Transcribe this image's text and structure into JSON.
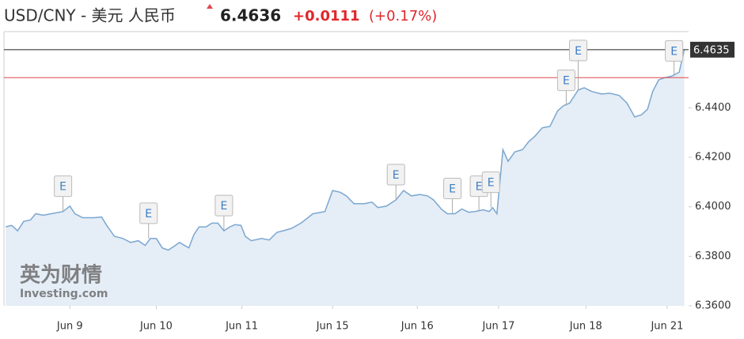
{
  "chart_data": {
    "type": "area",
    "title": "USD/CNY - 美元 人民币",
    "price": "6.4636",
    "change": "+0.0111",
    "change_percent": "(+0.17%)",
    "watermark": [
      "英为财情",
      "Investing.com"
    ],
    "x": [
      0.02,
      0.09,
      0.16,
      0.23,
      0.31,
      0.37,
      0.46,
      0.55,
      0.69,
      0.77,
      0.83,
      0.92,
      1.05,
      1.14,
      1.2,
      1.29,
      1.39,
      1.48,
      1.57,
      1.65,
      1.71,
      1.78,
      1.85,
      1.92,
      1.99,
      2.05,
      2.16,
      2.22,
      2.28,
      2.36,
      2.43,
      2.5,
      2.57,
      2.64,
      2.7,
      2.77,
      2.82,
      2.89,
      3.01,
      3.1,
      3.19,
      3.26,
      3.36,
      3.47,
      3.61,
      3.75,
      3.84,
      3.93,
      4.0,
      4.09,
      4.21,
      4.3,
      4.37,
      4.47,
      4.58,
      4.67,
      4.76,
      4.86,
      4.95,
      5.02,
      5.11,
      5.18,
      5.27,
      5.35,
      5.43,
      5.5,
      5.6,
      5.67,
      5.71,
      5.76,
      5.83,
      5.89,
      5.97,
      6.06,
      6.13,
      6.2,
      6.29,
      6.38,
      6.47,
      6.54,
      6.61,
      6.71,
      6.78,
      6.87,
      6.98,
      7.08,
      7.19,
      7.28,
      7.37,
      7.45,
      7.52,
      7.58,
      7.65,
      7.72,
      7.8,
      7.89,
      7.95
    ],
    "series": [
      {
        "name": "USD/CNY",
        "color": "#7ba7d1",
        "fill": "#e5edf6",
        "values": [
          6.3919,
          6.3925,
          6.3903,
          6.3941,
          6.3947,
          6.3972,
          6.3966,
          6.3972,
          6.3981,
          6.4003,
          6.3972,
          6.3956,
          6.3956,
          6.3959,
          6.3925,
          6.3881,
          6.3872,
          6.3856,
          6.3863,
          6.3844,
          6.3872,
          6.3872,
          6.3834,
          6.3825,
          6.3841,
          6.3856,
          6.3834,
          6.3888,
          6.3919,
          6.3919,
          6.3934,
          6.3934,
          6.3903,
          6.3919,
          6.3928,
          6.3925,
          6.3881,
          6.3863,
          6.3872,
          6.3866,
          6.3897,
          6.3903,
          6.3913,
          6.3934,
          6.3972,
          6.3981,
          6.4066,
          6.4059,
          6.4044,
          6.4013,
          6.4013,
          6.4019,
          6.3997,
          6.4003,
          6.4028,
          6.4066,
          6.4044,
          6.405,
          6.4044,
          6.4028,
          6.3991,
          6.3972,
          6.3972,
          6.3991,
          6.3978,
          6.3981,
          6.3988,
          6.3981,
          6.3997,
          6.3972,
          6.4231,
          6.4184,
          6.4222,
          6.4231,
          6.4263,
          6.4284,
          6.4319,
          6.4325,
          6.4388,
          6.4409,
          6.4419,
          6.4472,
          6.4481,
          6.4466,
          6.4456,
          6.4459,
          6.445,
          6.4419,
          6.4363,
          6.4372,
          6.4394,
          6.4466,
          6.4513,
          6.4522,
          6.4528,
          6.4544,
          6.4636
        ]
      }
    ],
    "reference_lines": [
      {
        "value": 6.4635,
        "color": "#222222"
      },
      {
        "value": 6.4522,
        "color": "#e0474c"
      }
    ],
    "events": [
      {
        "x": 0.69,
        "label": "E"
      },
      {
        "x": 1.69,
        "label": "E"
      },
      {
        "x": 2.57,
        "label": "E"
      },
      {
        "x": 4.58,
        "label": "E"
      },
      {
        "x": 5.24,
        "label": "E"
      },
      {
        "x": 5.55,
        "label": "E"
      },
      {
        "x": 5.69,
        "label": "E"
      },
      {
        "x": 6.57,
        "label": "E"
      },
      {
        "x": 6.71,
        "label": "E"
      },
      {
        "x": 7.83,
        "label": "E"
      }
    ],
    "xlim": [
      0,
      8
    ],
    "xticks": [
      {
        "value": 0.77,
        "label": "Jun 9"
      },
      {
        "value": 1.78,
        "label": "Jun 10"
      },
      {
        "value": 2.78,
        "label": "Jun 11"
      },
      {
        "value": 3.84,
        "label": "Jun 15"
      },
      {
        "value": 4.83,
        "label": "Jun 16"
      },
      {
        "value": 5.78,
        "label": "Jun 17"
      },
      {
        "value": 6.8,
        "label": "Jun 18"
      },
      {
        "value": 7.75,
        "label": "Jun 21"
      }
    ],
    "ylim": [
      6.36,
      6.4708
    ],
    "yticks": [
      {
        "value": 6.36,
        "label": "6.3600"
      },
      {
        "value": 6.38,
        "label": "6.3800"
      },
      {
        "value": 6.4,
        "label": "6.4000"
      },
      {
        "value": 6.42,
        "label": "6.4200"
      },
      {
        "value": 6.44,
        "label": "6.4400"
      }
    ]
  }
}
